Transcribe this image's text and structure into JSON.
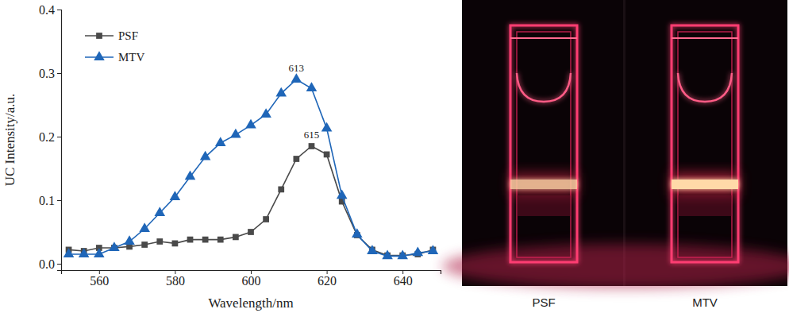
{
  "chart_data": {
    "type": "line",
    "x_label": "Wavelength/nm",
    "y_label": "UC Intensity/a.u.",
    "x": [
      552,
      556,
      560,
      564,
      568,
      572,
      576,
      580,
      584,
      588,
      592,
      596,
      600,
      604,
      608,
      612,
      616,
      620,
      624,
      628,
      632,
      636,
      640,
      644,
      648
    ],
    "series": [
      {
        "name": "PSF",
        "color": "#4a4a4a",
        "marker": "square",
        "line_style": "solid",
        "values": [
          0.022,
          0.02,
          0.025,
          0.025,
          0.027,
          0.03,
          0.035,
          0.032,
          0.038,
          0.038,
          0.038,
          0.042,
          0.05,
          0.07,
          0.117,
          0.165,
          0.185,
          0.172,
          0.098,
          0.045,
          0.022,
          0.013,
          0.013,
          0.015,
          0.022
        ]
      },
      {
        "name": "MTV",
        "color": "#1f66b8",
        "marker": "triangle",
        "line_style": "solid",
        "values": [
          0.015,
          0.015,
          0.015,
          0.025,
          0.035,
          0.055,
          0.08,
          0.105,
          0.137,
          0.168,
          0.19,
          0.203,
          0.218,
          0.235,
          0.268,
          0.29,
          0.276,
          0.213,
          0.107,
          0.046,
          0.02,
          0.012,
          0.012,
          0.017,
          0.02
        ]
      }
    ],
    "annotations": [
      {
        "text": "613",
        "x": 612,
        "y": 0.29
      },
      {
        "text": "615",
        "x": 616,
        "y": 0.185
      }
    ],
    "xlim": [
      550,
      650
    ],
    "xticks": [
      560,
      580,
      600,
      620,
      640
    ],
    "ylim": [
      -0.01,
      0.4
    ],
    "yticks": [
      {
        "value": 0,
        "label": "0.0"
      },
      0.1,
      0.2,
      0.3,
      0.4
    ],
    "legend": "upper left",
    "grid": false
  },
  "photo": {
    "labels": [
      "PSF",
      "MTV"
    ]
  }
}
